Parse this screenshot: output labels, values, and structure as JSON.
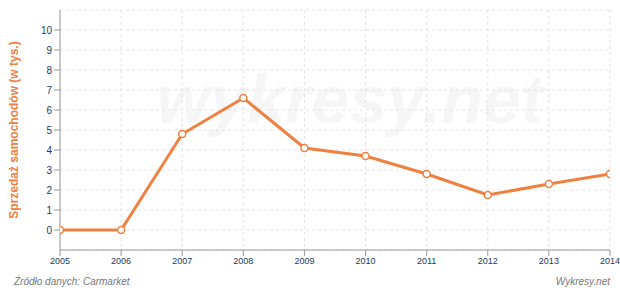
{
  "chart_data": {
    "type": "line",
    "y_label": "Sprzedaż samochodów (w tys.)",
    "x": [
      2005,
      2006,
      2007,
      2008,
      2009,
      2010,
      2011,
      2012,
      2013,
      2014
    ],
    "values": [
      0,
      0,
      4.8,
      6.6,
      4.1,
      3.7,
      2.8,
      1.75,
      2.3,
      2.8
    ],
    "color": "#f08040",
    "marker": "circle",
    "xlim": [
      2005,
      2014
    ],
    "xticks": [
      2005,
      2006,
      2007,
      2008,
      2009,
      2010,
      2011,
      2012,
      2013,
      2014
    ],
    "ylim": [
      -1,
      11
    ],
    "yticks": [
      0,
      1,
      2,
      3,
      4,
      5,
      6,
      7,
      8,
      9,
      10
    ],
    "grid": true,
    "annotations": [
      "wykresy.net",
      "Źródło danych: Carmarket",
      "Wykresy.net"
    ]
  }
}
